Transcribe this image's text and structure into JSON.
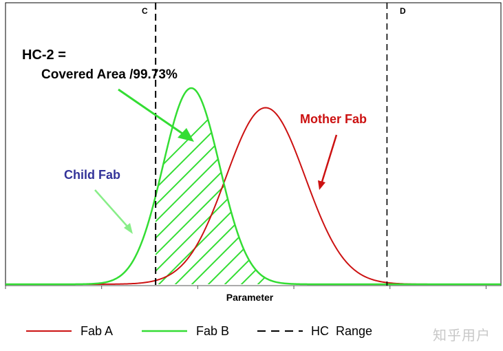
{
  "chart_data": {
    "type": "line",
    "title": "",
    "xlabel": "Parameter",
    "ylabel": "",
    "xlim": [
      0,
      100
    ],
    "ylim": [
      0,
      100
    ],
    "grid": false,
    "series": [
      {
        "name": "Fab A",
        "color": "#cc1111",
        "distribution": "normal",
        "mean": 52.5,
        "sd": 8.0,
        "peak": 90
      },
      {
        "name": "Fab B",
        "color": "#33dd33",
        "distribution": "normal",
        "mean": 37.5,
        "sd": 5.7,
        "peak": 100
      }
    ],
    "hc_range": {
      "name": "HC  Range",
      "lower": 30.3,
      "upper": 77.0,
      "lower_label": "C",
      "upper_label": "D",
      "color": "#000000"
    },
    "hatched_region": {
      "series": "Fab B",
      "from": 30.3,
      "to": 53.5
    },
    "annotations": {
      "hc2_line1": "HC-2 =",
      "hc2_line2": "Covered Area /99.73%",
      "child_fab": "Child Fab",
      "mother_fab": "Mother Fab"
    },
    "legend": {
      "position": "bottom",
      "entries": [
        {
          "label": "Fab A",
          "style": "solid",
          "color": "#cc1111"
        },
        {
          "label": "Fab B",
          "style": "solid",
          "color": "#33dd33"
        },
        {
          "label": "HC  Range",
          "style": "dashed",
          "color": "#000000"
        }
      ]
    }
  },
  "watermark": "知乎用户"
}
